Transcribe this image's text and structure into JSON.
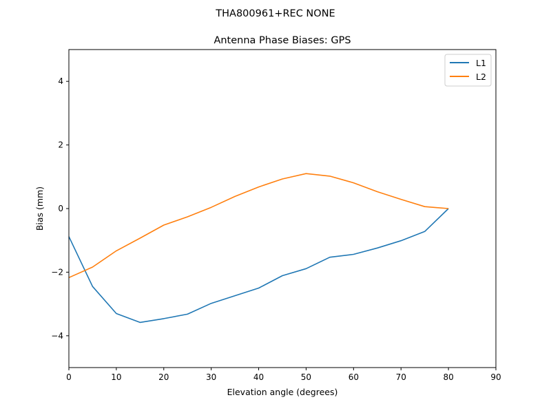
{
  "figure": {
    "suptitle": "THA800961+REC   NONE"
  },
  "chart_data": {
    "type": "line",
    "title": "Antenna Phase Biases: GPS",
    "xlabel": "Elevation angle (degrees)",
    "ylabel": "Bias (mm)",
    "xlim": [
      0,
      90
    ],
    "ylim": [
      -5,
      5
    ],
    "xticks": [
      0,
      10,
      20,
      30,
      40,
      50,
      60,
      70,
      80,
      90
    ],
    "yticks": [
      -4,
      -2,
      0,
      2,
      4
    ],
    "grid": false,
    "legend_position": "top-right",
    "x": [
      0,
      5,
      10,
      15,
      20,
      25,
      30,
      35,
      40,
      45,
      50,
      55,
      60,
      65,
      70,
      75,
      80
    ],
    "series": [
      {
        "name": "L1",
        "color": "#1f77b4",
        "values": [
          -0.88,
          -2.45,
          -3.3,
          -3.58,
          -3.46,
          -3.32,
          -2.98,
          -2.74,
          -2.5,
          -2.11,
          -1.89,
          -1.53,
          -1.44,
          -1.24,
          -1.01,
          -0.72,
          0.0
        ]
      },
      {
        "name": "L2",
        "color": "#ff7f0e",
        "values": [
          -2.17,
          -1.84,
          -1.33,
          -0.93,
          -0.52,
          -0.26,
          0.04,
          0.38,
          0.68,
          0.93,
          1.1,
          1.02,
          0.81,
          0.53,
          0.29,
          0.06,
          0.0
        ]
      }
    ]
  }
}
